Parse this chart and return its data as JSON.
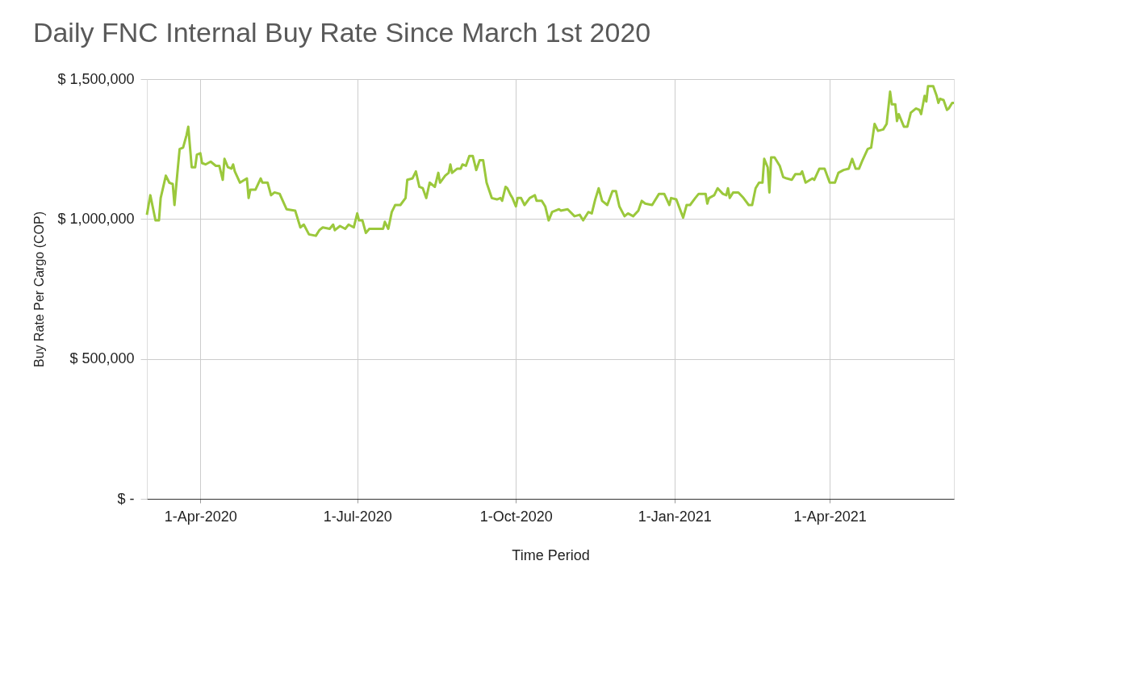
{
  "chart_data": {
    "type": "line",
    "title": "Daily FNC Internal Buy Rate Since March 1st 2020",
    "xlabel": "Time Period",
    "ylabel": "Buy Rate Per Cargo (COP)",
    "x": [
      "2020-03-01",
      "2020-03-03",
      "2020-03-06",
      "2020-03-08",
      "2020-03-09",
      "2020-03-12",
      "2020-03-14",
      "2020-03-16",
      "2020-03-17",
      "2020-03-19",
      "2020-03-20",
      "2020-03-22",
      "2020-03-24",
      "2020-03-25",
      "2020-03-27",
      "2020-03-29",
      "2020-03-30",
      "2020-04-01",
      "2020-04-02",
      "2020-04-04",
      "2020-04-07",
      "2020-04-10",
      "2020-04-12",
      "2020-04-14",
      "2020-04-15",
      "2020-04-17",
      "2020-04-19",
      "2020-04-20",
      "2020-04-21",
      "2020-04-24",
      "2020-04-28",
      "2020-04-29",
      "2020-04-30",
      "2020-05-03",
      "2020-05-06",
      "2020-05-07",
      "2020-05-10",
      "2020-05-12",
      "2020-05-14",
      "2020-05-17",
      "2020-05-21",
      "2020-05-26",
      "2020-05-29",
      "2020-05-31",
      "2020-06-03",
      "2020-06-07",
      "2020-06-09",
      "2020-06-11",
      "2020-06-15",
      "2020-06-17",
      "2020-06-18",
      "2020-06-21",
      "2020-06-24",
      "2020-06-26",
      "2020-06-29",
      "2020-07-01",
      "2020-07-02",
      "2020-07-04",
      "2020-07-06",
      "2020-07-08",
      "2020-07-16",
      "2020-07-17",
      "2020-07-19",
      "2020-07-21",
      "2020-07-23",
      "2020-07-26",
      "2020-07-29",
      "2020-07-30",
      "2020-08-02",
      "2020-08-04",
      "2020-08-06",
      "2020-08-08",
      "2020-08-10",
      "2020-08-12",
      "2020-08-15",
      "2020-08-17",
      "2020-08-18",
      "2020-08-21",
      "2020-08-23",
      "2020-08-24",
      "2020-08-25",
      "2020-08-28",
      "2020-08-30",
      "2020-08-31",
      "2020-09-02",
      "2020-09-04",
      "2020-09-06",
      "2020-09-08",
      "2020-09-10",
      "2020-09-12",
      "2020-09-14",
      "2020-09-17",
      "2020-09-20",
      "2020-09-22",
      "2020-09-23",
      "2020-09-25",
      "2020-09-26",
      "2020-09-28",
      "2020-09-29",
      "2020-10-01",
      "2020-10-02",
      "2020-10-04",
      "2020-10-06",
      "2020-10-09",
      "2020-10-12",
      "2020-10-13",
      "2020-10-16",
      "2020-10-18",
      "2020-10-20",
      "2020-10-22",
      "2020-10-26",
      "2020-10-27",
      "2020-10-31",
      "2020-11-04",
      "2020-11-07",
      "2020-11-09",
      "2020-11-12",
      "2020-11-14",
      "2020-11-16",
      "2020-11-18",
      "2020-11-20",
      "2020-11-23",
      "2020-11-26",
      "2020-11-28",
      "2020-11-30",
      "2020-12-03",
      "2020-12-05",
      "2020-12-08",
      "2020-12-11",
      "2020-12-13",
      "2020-12-15",
      "2020-12-19",
      "2020-12-23",
      "2020-12-26",
      "2020-12-29",
      "2020-12-30",
      "2021-01-02",
      "2021-01-06",
      "2021-01-08",
      "2021-01-10",
      "2021-01-13",
      "2021-01-15",
      "2021-01-19",
      "2021-01-20",
      "2021-01-21",
      "2021-01-24",
      "2021-01-26",
      "2021-01-29",
      "2021-01-31",
      "2021-02-01",
      "2021-02-02",
      "2021-02-04",
      "2021-02-07",
      "2021-02-10",
      "2021-02-13",
      "2021-02-15",
      "2021-02-17",
      "2021-02-19",
      "2021-02-21",
      "2021-02-22",
      "2021-02-24",
      "2021-02-25",
      "2021-02-26",
      "2021-02-28",
      "2021-03-03",
      "2021-03-05",
      "2021-03-07",
      "2021-03-10",
      "2021-03-12",
      "2021-03-15",
      "2021-03-16",
      "2021-03-18",
      "2021-03-22",
      "2021-03-23",
      "2021-03-26",
      "2021-03-29",
      "2021-04-01",
      "2021-04-04",
      "2021-04-06",
      "2021-04-09",
      "2021-04-12",
      "2021-04-14",
      "2021-04-16",
      "2021-04-18",
      "2021-04-20",
      "2021-04-23",
      "2021-04-25",
      "2021-04-27",
      "2021-04-29",
      "2021-05-02",
      "2021-05-04",
      "2021-05-06",
      "2021-05-07",
      "2021-05-09",
      "2021-05-10",
      "2021-05-11",
      "2021-05-14",
      "2021-05-16",
      "2021-05-18",
      "2021-05-21",
      "2021-05-23",
      "2021-05-24",
      "2021-05-26",
      "2021-05-27",
      "2021-05-28",
      "2021-05-31",
      "2021-06-02",
      "2021-06-03",
      "2021-06-04",
      "2021-06-06",
      "2021-06-08",
      "2021-06-09",
      "2021-06-11",
      "2021-06-12"
    ],
    "series": [
      {
        "color": "#9bc83c",
        "values": [
          1015000,
          1085000,
          995000,
          995000,
          1075000,
          1155000,
          1130000,
          1125000,
          1050000,
          1185000,
          1250000,
          1255000,
          1300000,
          1330000,
          1185000,
          1185000,
          1230000,
          1235000,
          1200000,
          1195000,
          1205000,
          1190000,
          1190000,
          1140000,
          1215000,
          1185000,
          1180000,
          1195000,
          1170000,
          1130000,
          1145000,
          1075000,
          1105000,
          1105000,
          1145000,
          1130000,
          1130000,
          1085000,
          1095000,
          1090000,
          1035000,
          1030000,
          970000,
          980000,
          945000,
          940000,
          960000,
          970000,
          965000,
          980000,
          960000,
          975000,
          965000,
          980000,
          970000,
          1020000,
          995000,
          995000,
          950000,
          965000,
          965000,
          990000,
          965000,
          1025000,
          1050000,
          1050000,
          1075000,
          1140000,
          1145000,
          1170000,
          1115000,
          1110000,
          1075000,
          1130000,
          1115000,
          1165000,
          1130000,
          1155000,
          1165000,
          1195000,
          1165000,
          1180000,
          1180000,
          1195000,
          1190000,
          1225000,
          1225000,
          1175000,
          1210000,
          1210000,
          1130000,
          1075000,
          1070000,
          1075000,
          1065000,
          1115000,
          1110000,
          1085000,
          1075000,
          1045000,
          1075000,
          1075000,
          1050000,
          1075000,
          1085000,
          1065000,
          1065000,
          1045000,
          995000,
          1025000,
          1035000,
          1030000,
          1035000,
          1010000,
          1015000,
          995000,
          1025000,
          1020000,
          1070000,
          1110000,
          1065000,
          1050000,
          1100000,
          1100000,
          1045000,
          1010000,
          1020000,
          1010000,
          1030000,
          1065000,
          1055000,
          1050000,
          1090000,
          1090000,
          1050000,
          1075000,
          1070000,
          1005000,
          1050000,
          1050000,
          1075000,
          1090000,
          1090000,
          1055000,
          1075000,
          1085000,
          1110000,
          1090000,
          1085000,
          1110000,
          1075000,
          1095000,
          1095000,
          1075000,
          1050000,
          1050000,
          1110000,
          1130000,
          1130000,
          1215000,
          1185000,
          1095000,
          1220000,
          1220000,
          1190000,
          1150000,
          1145000,
          1140000,
          1160000,
          1160000,
          1170000,
          1130000,
          1145000,
          1140000,
          1180000,
          1180000,
          1130000,
          1130000,
          1165000,
          1175000,
          1180000,
          1215000,
          1180000,
          1180000,
          1210000,
          1250000,
          1255000,
          1340000,
          1315000,
          1320000,
          1340000,
          1455000,
          1410000,
          1410000,
          1350000,
          1375000,
          1330000,
          1330000,
          1380000,
          1395000,
          1390000,
          1375000,
          1440000,
          1420000,
          1475000,
          1475000,
          1440000,
          1415000,
          1430000,
          1425000,
          1390000,
          1395000,
          1415000,
          1415000
        ]
      }
    ],
    "xlim": [
      "2020-03-01",
      "2021-06-12"
    ],
    "xticks": [
      {
        "value": "2020-04-01",
        "label": "1-Apr-2020"
      },
      {
        "value": "2020-07-01",
        "label": "1-Jul-2020"
      },
      {
        "value": "2020-10-01",
        "label": "1-Oct-2020"
      },
      {
        "value": "2021-01-01",
        "label": "1-Jan-2021"
      },
      {
        "value": "2021-04-01",
        "label": "1-Apr-2021"
      }
    ],
    "ylim": [
      0,
      1500000
    ],
    "yticks": [
      {
        "value": 0,
        "label": "$ -"
      },
      {
        "value": 500000,
        "label": "$ 500,000"
      },
      {
        "value": 1000000,
        "label": "$ 1,000,000"
      },
      {
        "value": 1500000,
        "label": "$ 1,500,000"
      }
    ],
    "grid": true,
    "line_style": "solid"
  }
}
